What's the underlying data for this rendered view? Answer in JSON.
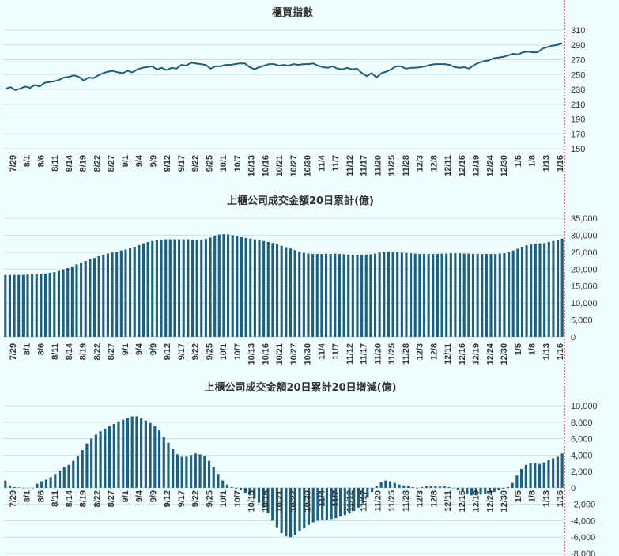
{
  "colors": {
    "background": "#f0fefe",
    "series": "#1f5f7e",
    "grid": "#c8e0e6",
    "marker_line": "#cc0000"
  },
  "x_labels": [
    "7/29",
    "8/1",
    "8/6",
    "8/11",
    "8/14",
    "8/19",
    "8/22",
    "8/27",
    "9/1",
    "9/4",
    "9/9",
    "9/12",
    "9/17",
    "9/22",
    "9/25",
    "10/1",
    "10/7",
    "10/13",
    "10/16",
    "10/21",
    "10/27",
    "10/30",
    "11/4",
    "11/7",
    "11/12",
    "11/17",
    "11/20",
    "11/25",
    "11/28",
    "12/3",
    "12/8",
    "12/11",
    "12/16",
    "12/19",
    "12/24",
    "12/30",
    "1/5",
    "1/8",
    "1/13",
    "1/16"
  ],
  "chart_data": [
    {
      "type": "line",
      "title": "櫃買指數",
      "ylim": [
        150,
        310
      ],
      "yticks": [
        150,
        170,
        190,
        210,
        230,
        250,
        270,
        290,
        310
      ],
      "categories_key": "x_labels",
      "values": [
        231,
        233,
        229,
        231,
        234,
        232,
        236,
        234,
        239,
        240,
        241,
        243,
        246,
        247,
        249,
        247,
        242,
        246,
        245,
        249,
        252,
        254,
        255,
        253,
        252,
        255,
        253,
        257,
        259,
        260,
        261,
        257,
        259,
        256,
        259,
        258,
        263,
        262,
        266,
        265,
        264,
        263,
        258,
        261,
        261,
        263,
        263,
        264,
        265,
        265,
        260,
        257,
        260,
        262,
        264,
        264,
        262,
        263,
        262,
        264,
        263,
        264,
        264,
        265,
        262,
        260,
        259,
        261,
        258,
        257,
        259,
        257,
        258,
        252,
        248,
        252,
        246,
        252,
        254,
        257,
        261,
        261,
        258,
        259,
        259,
        260,
        261,
        263,
        264,
        264,
        264,
        263,
        260,
        259,
        260,
        258,
        263,
        266,
        268,
        269,
        272,
        273,
        274,
        276,
        278,
        277,
        280,
        281,
        280,
        280,
        285,
        287,
        289,
        290,
        292
      ]
    },
    {
      "type": "bar",
      "title": "上櫃公司成交金額20日累計(億)",
      "ylim": [
        0,
        35000
      ],
      "yticks": [
        0,
        5000,
        10000,
        15000,
        20000,
        25000,
        30000,
        35000
      ],
      "categories_key": "x_labels",
      "values": [
        18300,
        18300,
        18300,
        18300,
        18300,
        18400,
        18500,
        18500,
        18600,
        18700,
        18900,
        19100,
        19500,
        19900,
        20300,
        20800,
        21400,
        21900,
        22400,
        22900,
        23300,
        23800,
        24200,
        24600,
        24900,
        25200,
        25500,
        25800,
        26200,
        26600,
        27100,
        27600,
        28000,
        28300,
        28500,
        28700,
        28800,
        28800,
        28800,
        28800,
        28800,
        28800,
        28700,
        28600,
        28600,
        28900,
        29300,
        29800,
        30200,
        30300,
        30200,
        30000,
        29700,
        29400,
        29200,
        29000,
        28800,
        28600,
        28300,
        28000,
        27700,
        27300,
        26900,
        26500,
        26100,
        25600,
        25100,
        24800,
        24600,
        24500,
        24500,
        24500,
        24500,
        24500,
        24600,
        24500,
        24400,
        24300,
        24200,
        24200,
        24300,
        24300,
        24400,
        24600,
        24900,
        25200,
        25200,
        25100,
        25000,
        24900,
        24800,
        24700,
        24600,
        24500,
        24500,
        24500,
        24500,
        24500,
        24600,
        24600,
        24700,
        24700,
        24700,
        24600,
        24600,
        24500,
        24500,
        24500,
        24500,
        24500,
        24500,
        24600,
        24700,
        25000,
        25500,
        26000,
        26600,
        27000,
        27300,
        27500,
        27600,
        27700,
        28000,
        28300,
        28600,
        29000
      ]
    },
    {
      "type": "bar",
      "title": "上櫃公司成交金額20日累計20日增減(億)",
      "ylim": [
        -8000,
        10000
      ],
      "yticks": [
        -8000,
        -6000,
        -4000,
        -2000,
        0,
        2000,
        4000,
        6000,
        8000,
        10000
      ],
      "categories_key": "x_labels",
      "values": [
        900,
        300,
        100,
        50,
        0,
        -50,
        0,
        500,
        800,
        1000,
        1300,
        1700,
        2100,
        2500,
        2800,
        3300,
        3900,
        4600,
        5400,
        6000,
        6500,
        6900,
        7200,
        7500,
        7800,
        8100,
        8300,
        8500,
        8700,
        8700,
        8500,
        8200,
        7900,
        7500,
        7000,
        6200,
        5500,
        4700,
        4100,
        3800,
        3800,
        4000,
        4200,
        4100,
        3900,
        3300,
        2500,
        1700,
        900,
        400,
        100,
        -100,
        -300,
        -600,
        -900,
        -1300,
        -1800,
        -2400,
        -3100,
        -4000,
        -4800,
        -5500,
        -5900,
        -6000,
        -5700,
        -5300,
        -4900,
        -4500,
        -4200,
        -4000,
        -3900,
        -3900,
        -3800,
        -3700,
        -3500,
        -3300,
        -3100,
        -2800,
        -2400,
        -1900,
        -1200,
        -500,
        200,
        700,
        900,
        800,
        600,
        400,
        300,
        200,
        100,
        0,
        100,
        200,
        200,
        200,
        200,
        200,
        100,
        0,
        -200,
        -400,
        -700,
        -900,
        -900,
        -800,
        -700,
        -600,
        -500,
        -300,
        -100,
        100,
        600,
        1500,
        2300,
        2800,
        3000,
        3000,
        2900,
        3100,
        3400,
        3600,
        3800,
        4200
      ]
    }
  ]
}
